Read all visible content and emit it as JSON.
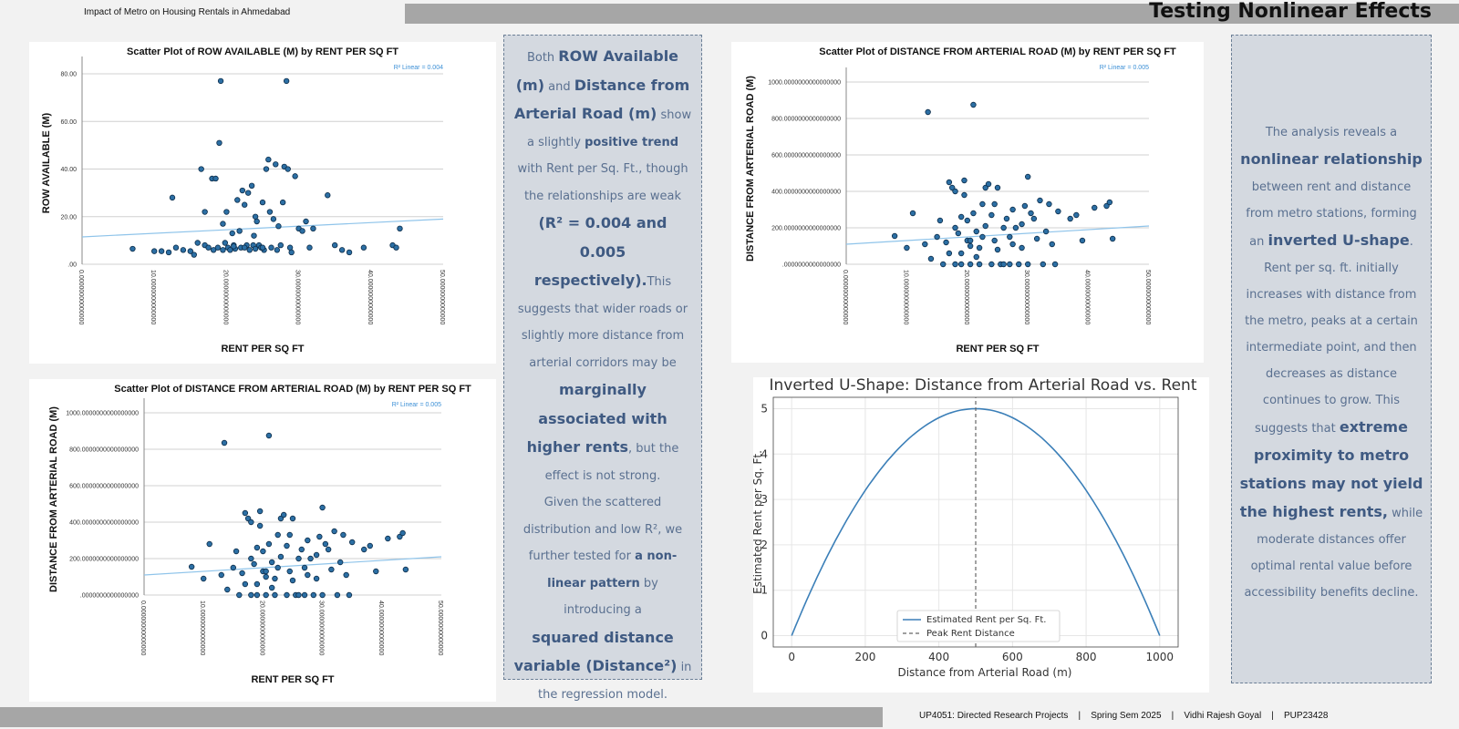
{
  "header": {
    "doc_title": "Impact of Metro on Housing Rentals in Ahmedabad",
    "section_title": "Testing Nonlinear Effects"
  },
  "footer": {
    "text": "UP4051: Directed Research Projects    |    Spring Sem 2025    |    Vidhi Rajesh Goyal    |    PUP23428"
  },
  "colors": {
    "bar": "#a6a6a6",
    "point_fill": "#2c6fa4",
    "fit_line": "#8fc4ea",
    "text_box_bg": "#d4d9e0",
    "text_box_accent": "#3f5a82",
    "curve": "#3b7fb8"
  },
  "chart_data": [
    {
      "id": "row",
      "type": "scatter",
      "title": "Scatter Plot of ROW AVAILABLE (M) by RENT PER SQ FT",
      "xlabel": "RENT PER SQ FT",
      "ylabel": "ROW AVAILABLE (M)",
      "r2_label": "R² Linear = 0.004",
      "xlim": [
        0,
        50
      ],
      "ylim": [
        0,
        85
      ],
      "xticks": [
        "0.00000000000000",
        "10.0000000000000",
        "20.0000000000000",
        "30.0000000000000",
        "40.0000000000000",
        "50.0000000000000"
      ],
      "yticks": [
        {
          "v": 0,
          "label": ".00"
        },
        {
          "v": 20,
          "label": "20.00"
        },
        {
          "v": 40,
          "label": "40.00"
        },
        {
          "v": 60,
          "label": "60.00"
        },
        {
          "v": 80,
          "label": "80.00"
        }
      ],
      "grid": true,
      "fit": [
        [
          0,
          11.5
        ],
        [
          50,
          19
        ]
      ],
      "points": [
        [
          7,
          6.5
        ],
        [
          10,
          5.5
        ],
        [
          11,
          5.5
        ],
        [
          12,
          5
        ],
        [
          12.5,
          28
        ],
        [
          13,
          7
        ],
        [
          14,
          6
        ],
        [
          15,
          5.5
        ],
        [
          15.5,
          4
        ],
        [
          16,
          9
        ],
        [
          16.5,
          40
        ],
        [
          17,
          22
        ],
        [
          17,
          8
        ],
        [
          17.5,
          7
        ],
        [
          18,
          36
        ],
        [
          18.2,
          6
        ],
        [
          18.5,
          36
        ],
        [
          18.8,
          7
        ],
        [
          19,
          51
        ],
        [
          19.2,
          77
        ],
        [
          19.5,
          17
        ],
        [
          19.8,
          9
        ],
        [
          20,
          22
        ],
        [
          20.2,
          7
        ],
        [
          20.5,
          6
        ],
        [
          20.8,
          13
        ],
        [
          21,
          8
        ],
        [
          21.2,
          6.5
        ],
        [
          21.5,
          27
        ],
        [
          21.8,
          14
        ],
        [
          22,
          7
        ],
        [
          22.2,
          31
        ],
        [
          22.5,
          25
        ],
        [
          22.8,
          8
        ],
        [
          23,
          30
        ],
        [
          23.2,
          6
        ],
        [
          23.5,
          33
        ],
        [
          23.8,
          12
        ],
        [
          24,
          20
        ],
        [
          24.2,
          18
        ],
        [
          24.5,
          8
        ],
        [
          24.8,
          7
        ],
        [
          25,
          26
        ],
        [
          25.2,
          6
        ],
        [
          25.5,
          40
        ],
        [
          25.8,
          44
        ],
        [
          26,
          22
        ],
        [
          26.2,
          7
        ],
        [
          26.5,
          19
        ],
        [
          26.8,
          42
        ],
        [
          27,
          6
        ],
        [
          27.2,
          16
        ],
        [
          27.5,
          8
        ],
        [
          27.8,
          26
        ],
        [
          28,
          41
        ],
        [
          28.3,
          77
        ],
        [
          28.5,
          40
        ],
        [
          28.8,
          7
        ],
        [
          29,
          5
        ],
        [
          29.5,
          37
        ],
        [
          30,
          15
        ],
        [
          30.5,
          14
        ],
        [
          31,
          18
        ],
        [
          31.5,
          7
        ],
        [
          32,
          15
        ],
        [
          34,
          29
        ],
        [
          35,
          8
        ],
        [
          36,
          6
        ],
        [
          37,
          5
        ],
        [
          39,
          7
        ],
        [
          43,
          8
        ],
        [
          43.5,
          7
        ],
        [
          44,
          15
        ],
        [
          22.5,
          7
        ],
        [
          23.7,
          8
        ],
        [
          25,
          7
        ],
        [
          21,
          7.5
        ],
        [
          19.5,
          6
        ],
        [
          24,
          6.5
        ]
      ]
    },
    {
      "id": "dist1",
      "type": "scatter",
      "title": "Scatter Plot of DISTANCE FROM ARTERIAL ROAD (M) by RENT PER SQ FT",
      "xlabel": "RENT PER SQ FT",
      "ylabel": "DISTANCE FROM ARTERIAL ROAD (M)",
      "r2_label": "R² Linear = 0.005",
      "xlim": [
        0,
        50
      ],
      "ylim": [
        0,
        1050
      ],
      "xticks": [
        "0.00000000000000",
        "10.0000000000000",
        "20.0000000000000",
        "30.0000000000000",
        "40.0000000000000",
        "50.0000000000000"
      ],
      "yticks": [
        {
          "v": 0,
          "label": ".0000000000000000"
        },
        {
          "v": 200,
          "label": "200.0000000000000000"
        },
        {
          "v": 400,
          "label": "400.0000000000000000"
        },
        {
          "v": 600,
          "label": "600.0000000000000000"
        },
        {
          "v": 800,
          "label": "800.0000000000000000"
        },
        {
          "v": 1000,
          "label": "1000.0000000000000000"
        }
      ],
      "grid": true,
      "fit": [
        [
          0,
          110
        ],
        [
          50,
          210
        ]
      ],
      "points": [
        [
          8,
          155
        ],
        [
          10,
          90
        ],
        [
          11,
          280
        ],
        [
          13,
          110
        ],
        [
          13.5,
          835
        ],
        [
          14,
          30
        ],
        [
          15,
          150
        ],
        [
          15.5,
          240
        ],
        [
          16,
          0
        ],
        [
          16.5,
          120
        ],
        [
          17,
          450
        ],
        [
          17,
          60
        ],
        [
          17.5,
          420
        ],
        [
          18,
          400
        ],
        [
          18,
          200
        ],
        [
          18.5,
          170
        ],
        [
          19,
          260
        ],
        [
          19,
          60
        ],
        [
          19.5,
          380
        ],
        [
          19.5,
          460
        ],
        [
          20,
          240
        ],
        [
          20,
          130
        ],
        [
          20.5,
          100
        ],
        [
          20.5,
          0
        ],
        [
          21,
          875
        ],
        [
          21,
          280
        ],
        [
          21.5,
          180
        ],
        [
          21.5,
          40
        ],
        [
          22,
          0
        ],
        [
          22.5,
          150
        ],
        [
          22.5,
          330
        ],
        [
          23,
          420
        ],
        [
          23,
          210
        ],
        [
          23.5,
          440
        ],
        [
          24,
          270
        ],
        [
          24,
          0
        ],
        [
          24.5,
          130
        ],
        [
          25,
          420
        ],
        [
          25,
          80
        ],
        [
          25.5,
          0
        ],
        [
          26,
          200
        ],
        [
          26.5,
          250
        ],
        [
          27,
          0
        ],
        [
          27.5,
          300
        ],
        [
          27.5,
          110
        ],
        [
          28,
          200
        ],
        [
          28.5,
          0
        ],
        [
          29,
          220
        ],
        [
          29.5,
          320
        ],
        [
          30,
          480
        ],
        [
          30,
          0
        ],
        [
          30.5,
          280
        ],
        [
          31,
          250
        ],
        [
          31.5,
          140
        ],
        [
          32,
          350
        ],
        [
          32.5,
          0
        ],
        [
          33,
          180
        ],
        [
          33.5,
          330
        ],
        [
          34,
          110
        ],
        [
          34.5,
          0
        ],
        [
          35,
          290
        ],
        [
          37,
          250
        ],
        [
          38,
          270
        ],
        [
          39,
          130
        ],
        [
          41,
          310
        ],
        [
          43,
          320
        ],
        [
          43.5,
          340
        ],
        [
          44,
          140
        ],
        [
          19,
          0
        ],
        [
          26,
          0
        ],
        [
          22,
          90
        ],
        [
          24.5,
          330
        ],
        [
          20.5,
          130
        ],
        [
          18,
          0
        ],
        [
          27,
          150
        ],
        [
          29,
          90
        ]
      ]
    },
    {
      "id": "dist2",
      "type": "scatter",
      "title": "Scatter Plot of DISTANCE FROM ARTERIAL ROAD (M) by RENT PER SQ FT",
      "xlabel": "RENT PER SQ FT",
      "ylabel": "DISTANCE FROM ARTERIAL ROAD (M)",
      "r2_label": "R² Linear = 0.005",
      "xlim": [
        0,
        50
      ],
      "ylim": [
        0,
        1050
      ],
      "xticks": [
        "0.00000000000000",
        "10.0000000000000",
        "20.0000000000000",
        "30.0000000000000",
        "40.0000000000000",
        "50.0000000000000"
      ],
      "yticks": [
        {
          "v": 0,
          "label": ".0000000000000000"
        },
        {
          "v": 200,
          "label": "200.0000000000000000"
        },
        {
          "v": 400,
          "label": "400.0000000000000000"
        },
        {
          "v": 600,
          "label": "600.0000000000000000"
        },
        {
          "v": 800,
          "label": "800.0000000000000000"
        },
        {
          "v": 1000,
          "label": "1000.0000000000000000"
        }
      ],
      "grid": true,
      "fit": [
        [
          0,
          110
        ],
        [
          50,
          210
        ]
      ],
      "points": [
        [
          8,
          155
        ],
        [
          10,
          90
        ],
        [
          11,
          280
        ],
        [
          13,
          110
        ],
        [
          13.5,
          835
        ],
        [
          14,
          30
        ],
        [
          15,
          150
        ],
        [
          15.5,
          240
        ],
        [
          16,
          0
        ],
        [
          16.5,
          120
        ],
        [
          17,
          450
        ],
        [
          17,
          60
        ],
        [
          17.5,
          420
        ],
        [
          18,
          400
        ],
        [
          18,
          200
        ],
        [
          18.5,
          170
        ],
        [
          19,
          260
        ],
        [
          19,
          60
        ],
        [
          19.5,
          380
        ],
        [
          19.5,
          460
        ],
        [
          20,
          240
        ],
        [
          20,
          130
        ],
        [
          20.5,
          100
        ],
        [
          20.5,
          0
        ],
        [
          21,
          875
        ],
        [
          21,
          280
        ],
        [
          21.5,
          180
        ],
        [
          21.5,
          40
        ],
        [
          22,
          0
        ],
        [
          22.5,
          150
        ],
        [
          22.5,
          330
        ],
        [
          23,
          420
        ],
        [
          23,
          210
        ],
        [
          23.5,
          440
        ],
        [
          24,
          270
        ],
        [
          24,
          0
        ],
        [
          24.5,
          130
        ],
        [
          25,
          420
        ],
        [
          25,
          80
        ],
        [
          25.5,
          0
        ],
        [
          26,
          200
        ],
        [
          26.5,
          250
        ],
        [
          27,
          0
        ],
        [
          27.5,
          300
        ],
        [
          27.5,
          110
        ],
        [
          28,
          200
        ],
        [
          28.5,
          0
        ],
        [
          29,
          220
        ],
        [
          29.5,
          320
        ],
        [
          30,
          480
        ],
        [
          30,
          0
        ],
        [
          30.5,
          280
        ],
        [
          31,
          250
        ],
        [
          31.5,
          140
        ],
        [
          32,
          350
        ],
        [
          32.5,
          0
        ],
        [
          33,
          180
        ],
        [
          33.5,
          330
        ],
        [
          34,
          110
        ],
        [
          34.5,
          0
        ],
        [
          35,
          290
        ],
        [
          37,
          250
        ],
        [
          38,
          270
        ],
        [
          39,
          130
        ],
        [
          41,
          310
        ],
        [
          43,
          320
        ],
        [
          43.5,
          340
        ],
        [
          44,
          140
        ],
        [
          19,
          0
        ],
        [
          26,
          0
        ],
        [
          22,
          90
        ],
        [
          24.5,
          330
        ],
        [
          20.5,
          130
        ],
        [
          18,
          0
        ],
        [
          27,
          150
        ],
        [
          29,
          90
        ]
      ]
    },
    {
      "id": "ushape",
      "type": "line",
      "title": "Inverted U-Shape: Distance from Arterial Road vs. Rent",
      "xlabel": "Distance from Arterial Road (m)",
      "ylabel": "Estimated Rent per Sq. Ft.",
      "xlim": [
        -50,
        1050
      ],
      "ylim": [
        -0.25,
        5.25
      ],
      "xticks": [
        0,
        200,
        400,
        600,
        800,
        1000
      ],
      "yticks": [
        0,
        1,
        2,
        3,
        4,
        5
      ],
      "grid": true,
      "legend_position": "bottom-center",
      "series": [
        {
          "name": "Estimated Rent per Sq. Ft.",
          "x": [
            0,
            50,
            100,
            150,
            200,
            250,
            300,
            350,
            400,
            450,
            500,
            550,
            600,
            650,
            700,
            750,
            800,
            850,
            900,
            950,
            1000
          ],
          "values": [
            0,
            0.95,
            1.8,
            2.55,
            3.2,
            3.75,
            4.2,
            4.55,
            4.8,
            4.95,
            5,
            4.95,
            4.8,
            4.55,
            4.2,
            3.75,
            3.2,
            2.55,
            1.8,
            0.95,
            0
          ]
        },
        {
          "name": "Peak Rent Distance",
          "x": [
            500,
            500
          ],
          "values": [
            -0.25,
            5.25
          ]
        }
      ]
    }
  ],
  "textbox_left": {
    "p1": [
      "Both ",
      "ROW Available (m)",
      " and ",
      "Distance from Arterial Road (m)",
      " show a slightly ",
      "positive trend",
      " with Rent per Sq. Ft., though the relationships are weak ",
      "(R² = 0.004 and 0.005 respectively).",
      "This suggests that wider roads or slightly more distance from arterial corridors may be ",
      "marginally associated with higher rents",
      ", but the effect is not strong."
    ],
    "p2": [
      "Given the scattered distribution and low R², we further tested for ",
      "a non-linear pattern",
      " by introducing a"
    ],
    "p3": [
      "squared distance variable (Distance²)",
      " in the regression model."
    ]
  },
  "textbox_right": {
    "p1": [
      "The analysis reveals a ",
      "nonlinear relationship",
      " between rent and distance from metro stations, forming an ",
      "inverted U-shape",
      ". Rent per sq. ft. initially increases with distance from the metro, peaks at a certain intermediate point, and then decreases as distance continues to grow. This suggests that ",
      "extreme proximity to metro stations may not yield the highest rents,",
      " while moderate distances offer optimal rental value before accessibility benefits decline."
    ]
  }
}
